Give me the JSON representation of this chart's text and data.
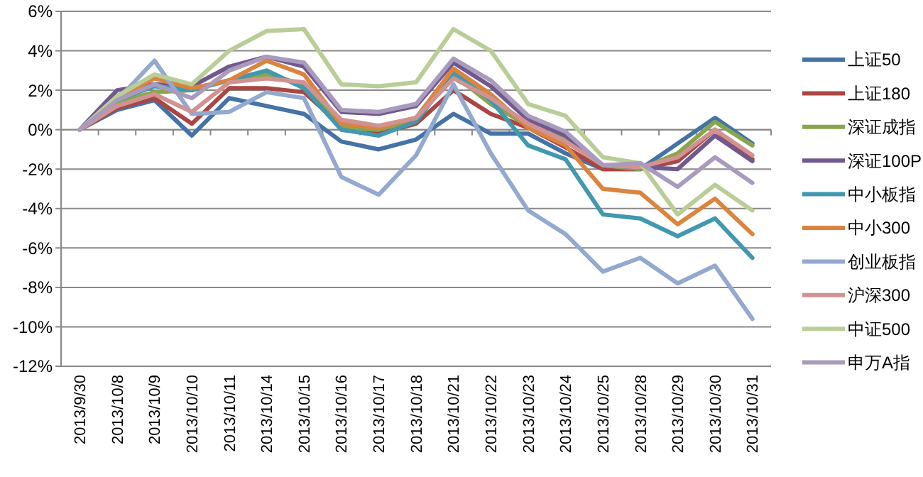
{
  "chart_data": {
    "type": "line",
    "categories": [
      "2013/9/30",
      "2013/10/8",
      "2013/10/9",
      "2013/10/10",
      "2013/10/11",
      "2013/10/14",
      "2013/10/15",
      "2013/10/16",
      "2013/10/17",
      "2013/10/18",
      "2013/10/21",
      "2013/10/22",
      "2013/10/23",
      "2013/10/24",
      "2013/10/25",
      "2013/10/28",
      "2013/10/29",
      "2013/10/30",
      "2013/10/31"
    ],
    "ylim": [
      -12,
      6
    ],
    "yticks": [
      {
        "value": -12,
        "label": "-12%"
      },
      {
        "value": -10,
        "label": "-10%"
      },
      {
        "value": -8,
        "label": "-8%"
      },
      {
        "value": -6,
        "label": "-6%"
      },
      {
        "value": -4,
        "label": "-4%"
      },
      {
        "value": -2,
        "label": "-2%"
      },
      {
        "value": 0,
        "label": "0%"
      },
      {
        "value": 2,
        "label": "2%"
      },
      {
        "value": 4,
        "label": "4%"
      },
      {
        "value": 6,
        "label": "6%"
      }
    ],
    "grid": "y",
    "legend": "right",
    "marker": "none",
    "series": [
      {
        "name": "上证50",
        "color": "#4572a7",
        "values": [
          0,
          1.0,
          1.5,
          -0.3,
          1.6,
          1.2,
          0.8,
          -0.6,
          -1.0,
          -0.5,
          0.8,
          -0.2,
          -0.2,
          -1.2,
          -2.0,
          -2.0,
          -0.7,
          0.6,
          -0.7
        ]
      },
      {
        "name": "上证180",
        "color": "#aa4643",
        "values": [
          0,
          1.1,
          1.6,
          0.3,
          2.1,
          2.1,
          1.9,
          0.2,
          -0.2,
          0.3,
          2.0,
          0.8,
          0.1,
          -0.9,
          -2.0,
          -2.0,
          -1.6,
          0,
          -1.5
        ]
      },
      {
        "name": "深证成指",
        "color": "#89a54e",
        "values": [
          0,
          1.4,
          1.9,
          2.0,
          2.5,
          2.8,
          2.3,
          0.1,
          0,
          0.5,
          2.8,
          1.3,
          0.2,
          -0.5,
          -1.8,
          -2.0,
          -1.2,
          0.4,
          -0.8
        ]
      },
      {
        "name": "深证100P",
        "color": "#71588f",
        "values": [
          0,
          2.0,
          2.3,
          2.2,
          3.2,
          3.7,
          3.2,
          0.9,
          0.8,
          1.2,
          3.4,
          2.2,
          0.5,
          -0.3,
          -1.8,
          -1.9,
          -2.0,
          -0.3,
          -1.6
        ]
      },
      {
        "name": "中小板指",
        "color": "#4198af",
        "values": [
          0,
          1.5,
          2.2,
          2.0,
          2.5,
          3.0,
          2.1,
          0,
          -0.3,
          0.4,
          2.9,
          1.5,
          -0.8,
          -1.5,
          -4.3,
          -4.5,
          -5.4,
          -4.5,
          -6.5
        ]
      },
      {
        "name": "中小300",
        "color": "#db843d",
        "values": [
          0,
          1.6,
          2.6,
          2.1,
          2.5,
          3.5,
          2.8,
          0.3,
          0.1,
          0.6,
          3.1,
          1.8,
          0.1,
          -0.8,
          -3.0,
          -3.2,
          -4.8,
          -3.5,
          -5.3
        ]
      },
      {
        "name": "创业板指",
        "color": "#93a9cf",
        "values": [
          0,
          1.5,
          3.5,
          0.8,
          0.9,
          1.9,
          1.6,
          -2.4,
          -3.3,
          -1.3,
          2.3,
          -1.2,
          -4.1,
          -5.3,
          -7.2,
          -6.5,
          -7.8,
          -6.9,
          -9.6
        ]
      },
      {
        "name": "沪深300",
        "color": "#d19392",
        "values": [
          0,
          1.2,
          1.8,
          0.9,
          2.4,
          2.6,
          2.4,
          0.5,
          0.2,
          0.6,
          2.6,
          1.6,
          0.3,
          -0.6,
          -1.8,
          -1.9,
          -1.4,
          0,
          -1.3
        ]
      },
      {
        "name": "中证500",
        "color": "#b9cd96",
        "values": [
          0,
          1.7,
          2.8,
          2.3,
          4.0,
          5.0,
          5.1,
          2.3,
          2.2,
          2.4,
          5.1,
          4.0,
          1.3,
          0.7,
          -1.4,
          -1.7,
          -4.3,
          -2.8,
          -4.1
        ]
      },
      {
        "name": "申万A指",
        "color": "#a99bbd",
        "values": [
          0,
          1.5,
          2.3,
          1.6,
          3.0,
          3.7,
          3.4,
          1.0,
          0.9,
          1.3,
          3.6,
          2.5,
          0.7,
          -0.1,
          -1.8,
          -1.7,
          -2.9,
          -1.4,
          -2.7
        ]
      }
    ]
  }
}
